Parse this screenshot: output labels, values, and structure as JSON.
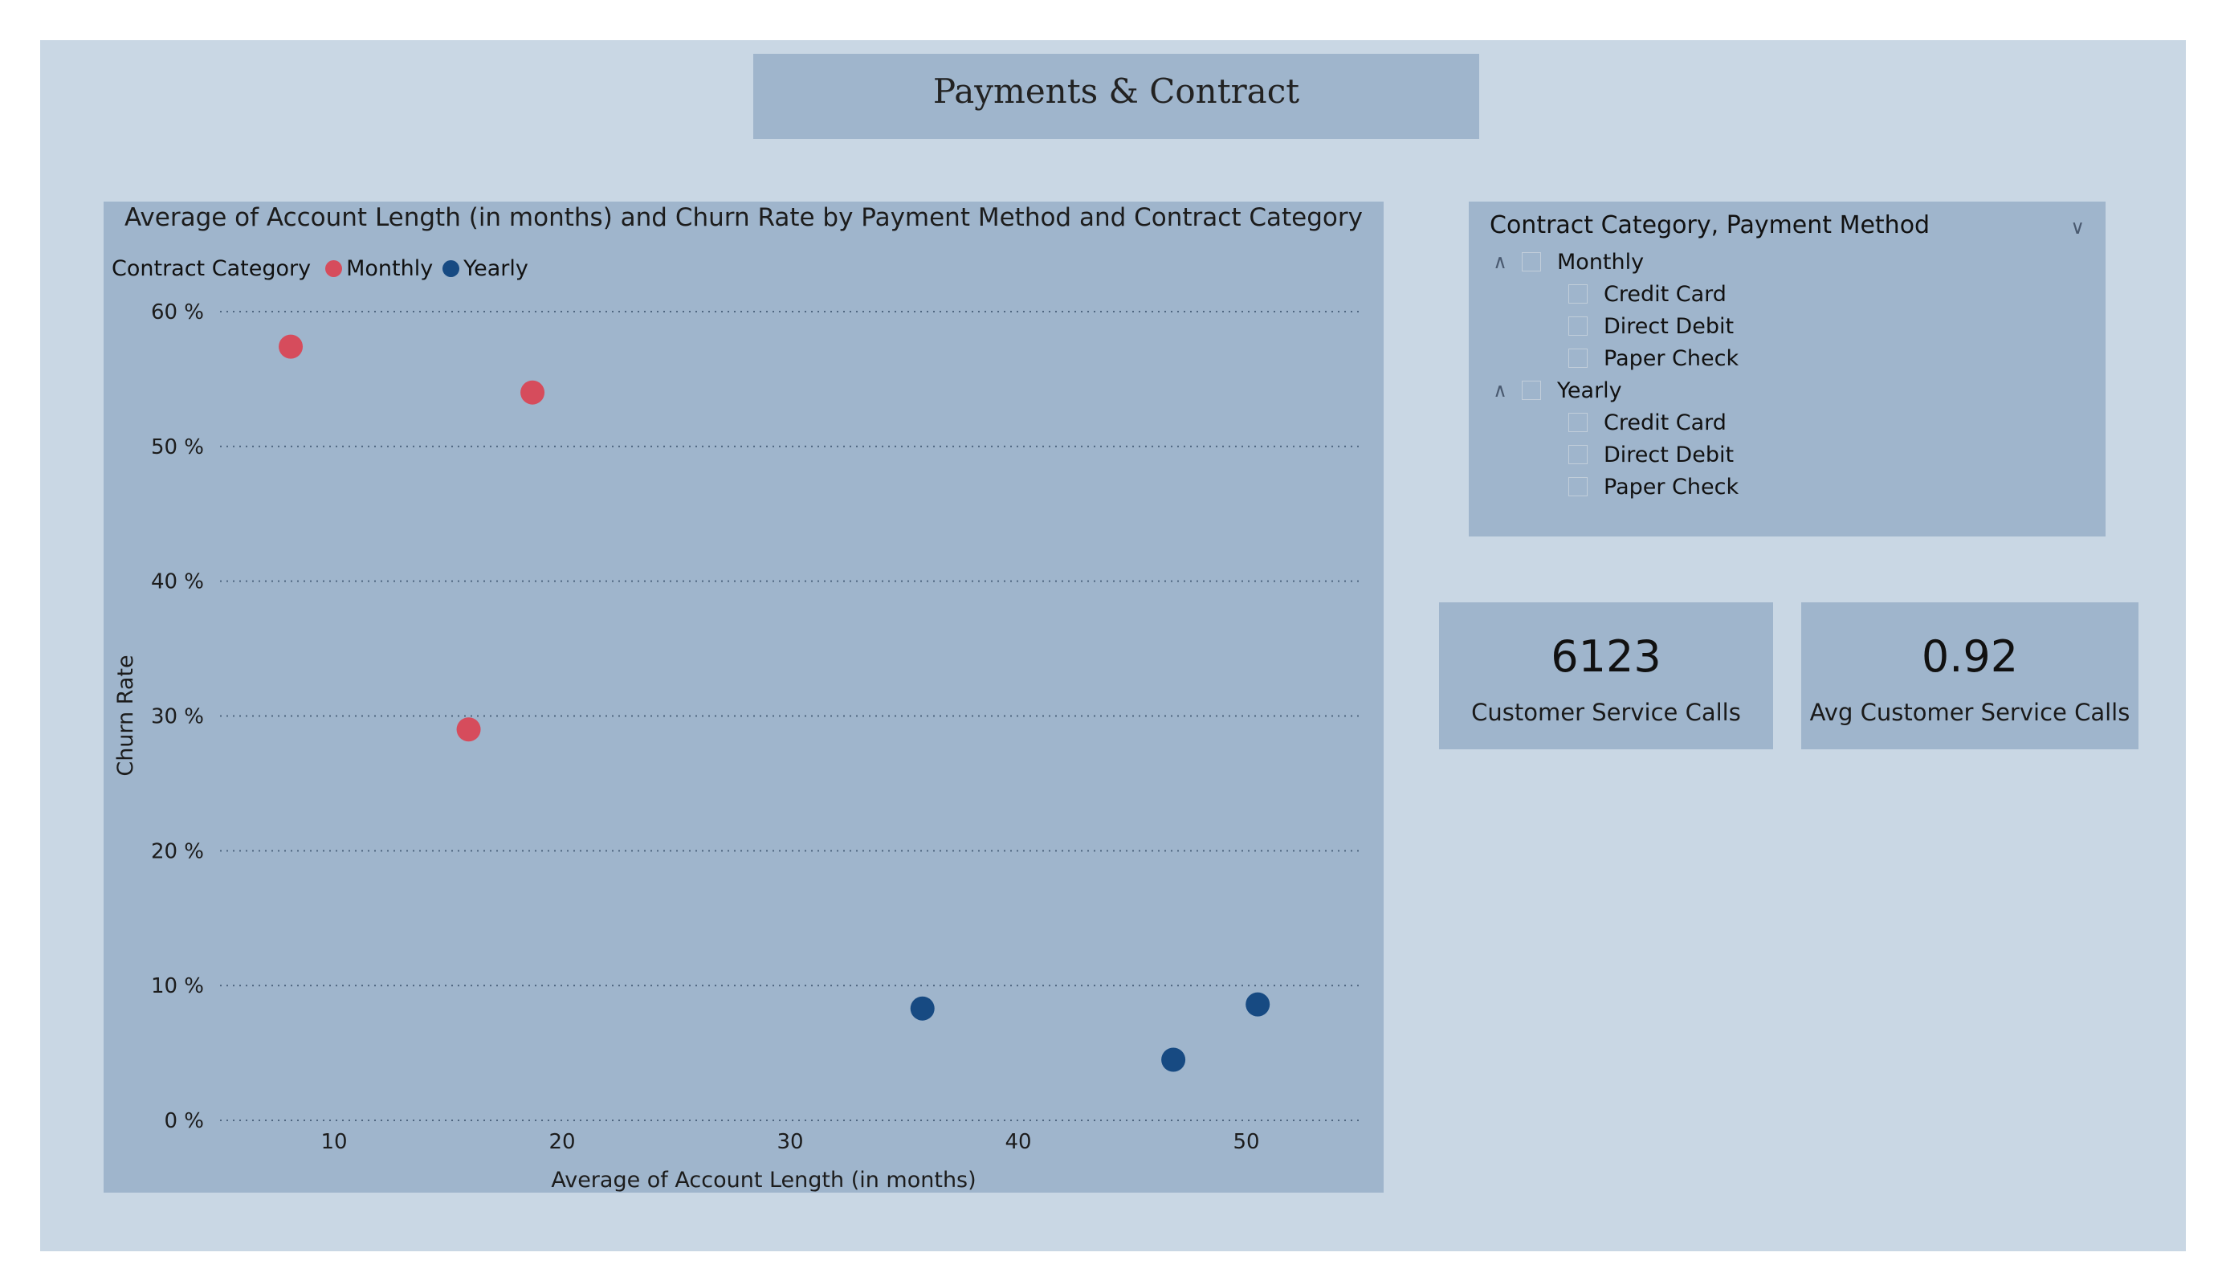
{
  "page": {
    "title": "Payments & Contract",
    "colors": {
      "canvas": "#c9d7e4",
      "panel": "#9fb5cc",
      "monthly": "#d64c5c",
      "yearly": "#174a82"
    }
  },
  "chart_data": {
    "type": "scatter",
    "title": "Average of Account Length (in months) and Churn Rate by Payment Method and Contract Category",
    "xlabel": "Average of Account Length (in months)",
    "ylabel": "Churn Rate",
    "xlim": [
      5,
      55
    ],
    "ylim": [
      0,
      60
    ],
    "x_ticks": [
      10,
      20,
      30,
      40,
      50
    ],
    "x_tick_labels": [
      "10",
      "20",
      "30",
      "40",
      "50"
    ],
    "y_ticks": [
      0,
      10,
      20,
      30,
      40,
      50,
      60
    ],
    "y_tick_labels": [
      "0 %",
      "10 %",
      "20 %",
      "30 %",
      "40 %",
      "50 %",
      "60 %"
    ],
    "grid": "horizontal dotted",
    "legend": {
      "title": "Contract Category",
      "placement": "top-left"
    },
    "series": [
      {
        "name": "Monthly",
        "color": "#d64c5c",
        "points": [
          {
            "x": 8.1,
            "y": 57.4
          },
          {
            "x": 18.7,
            "y": 54.0
          },
          {
            "x": 15.9,
            "y": 29.0
          }
        ]
      },
      {
        "name": "Yearly",
        "color": "#174a82",
        "points": [
          {
            "x": 35.8,
            "y": 8.3
          },
          {
            "x": 46.8,
            "y": 4.5
          },
          {
            "x": 50.5,
            "y": 8.6
          }
        ]
      }
    ]
  },
  "slicer": {
    "title": "Contract Category, Payment Method",
    "groups": [
      {
        "label": "Monthly",
        "items": [
          "Credit Card",
          "Direct Debit",
          "Paper Check"
        ]
      },
      {
        "label": "Yearly",
        "items": [
          "Credit Card",
          "Direct Debit",
          "Paper Check"
        ]
      }
    ]
  },
  "cards": [
    {
      "value": "6123",
      "label": "Customer Service Calls"
    },
    {
      "value": "0.92",
      "label": "Avg Customer Service Calls"
    }
  ]
}
